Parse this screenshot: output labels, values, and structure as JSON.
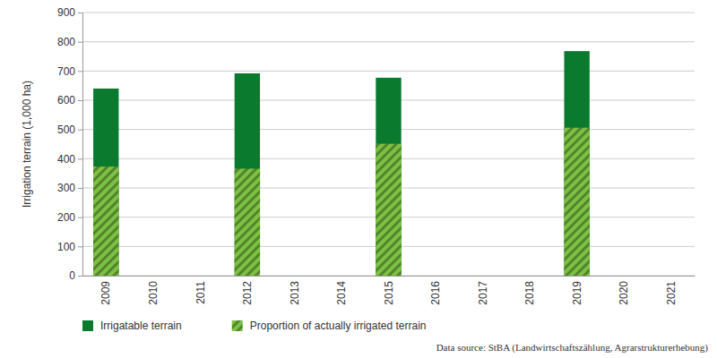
{
  "chart_data": {
    "type": "bar",
    "y_label": "Irrigation terrain (1,000 ha)",
    "categories": [
      "2009",
      "2010",
      "2011",
      "2012",
      "2013",
      "2014",
      "2015",
      "2016",
      "2017",
      "2018",
      "2019",
      "2020",
      "2021"
    ],
    "series": [
      {
        "name": "Irrigatable terrain",
        "color": "#0a7a2f",
        "values": [
          640,
          null,
          null,
          692,
          null,
          null,
          677,
          null,
          null,
          null,
          768,
          null,
          null
        ]
      },
      {
        "name": "Proportion of actually irrigated terrain",
        "color": "#7cc242",
        "values": [
          373,
          null,
          null,
          366,
          null,
          null,
          451,
          null,
          null,
          null,
          506,
          null,
          null
        ]
      }
    ],
    "ylim": [
      0,
      900
    ],
    "yticks": [
      0,
      100,
      200,
      300,
      400,
      500,
      600,
      700,
      800,
      900
    ],
    "grid": true,
    "legend": "bottom",
    "annotations": [
      "Data source: StBA (Landwirtschaftszählung, Agrarstrukturerhebung)"
    ]
  }
}
